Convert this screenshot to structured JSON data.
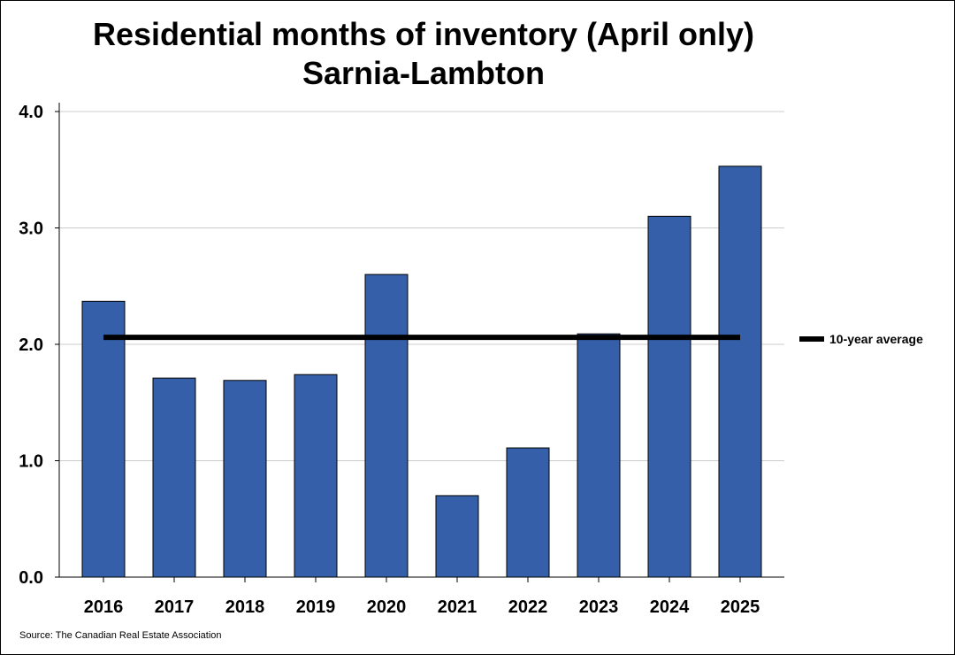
{
  "chart_data": {
    "type": "bar",
    "title": "Residential months of inventory (April only)",
    "subtitle": "Sarnia-Lambton",
    "categories": [
      "2016",
      "2017",
      "2018",
      "2019",
      "2020",
      "2021",
      "2022",
      "2023",
      "2024",
      "2025"
    ],
    "values": [
      2.37,
      1.71,
      1.69,
      1.74,
      2.6,
      0.7,
      1.11,
      2.09,
      3.1,
      3.53
    ],
    "ylim": [
      0,
      4.0
    ],
    "yticks": [
      0.0,
      1.0,
      2.0,
      3.0,
      4.0
    ],
    "ytick_labels": [
      "0.0",
      "1.0",
      "2.0",
      "3.0",
      "4.0"
    ],
    "grid": true,
    "reference_line": {
      "name": "10-year average",
      "value": 2.06
    },
    "legend": {
      "position": "right",
      "entries": [
        "10-year average"
      ]
    },
    "source": "Source: The Canadian Real Estate Association",
    "colors": {
      "bar": "#355FA8",
      "average_line": "#000000",
      "grid": "#cccccc"
    }
  }
}
